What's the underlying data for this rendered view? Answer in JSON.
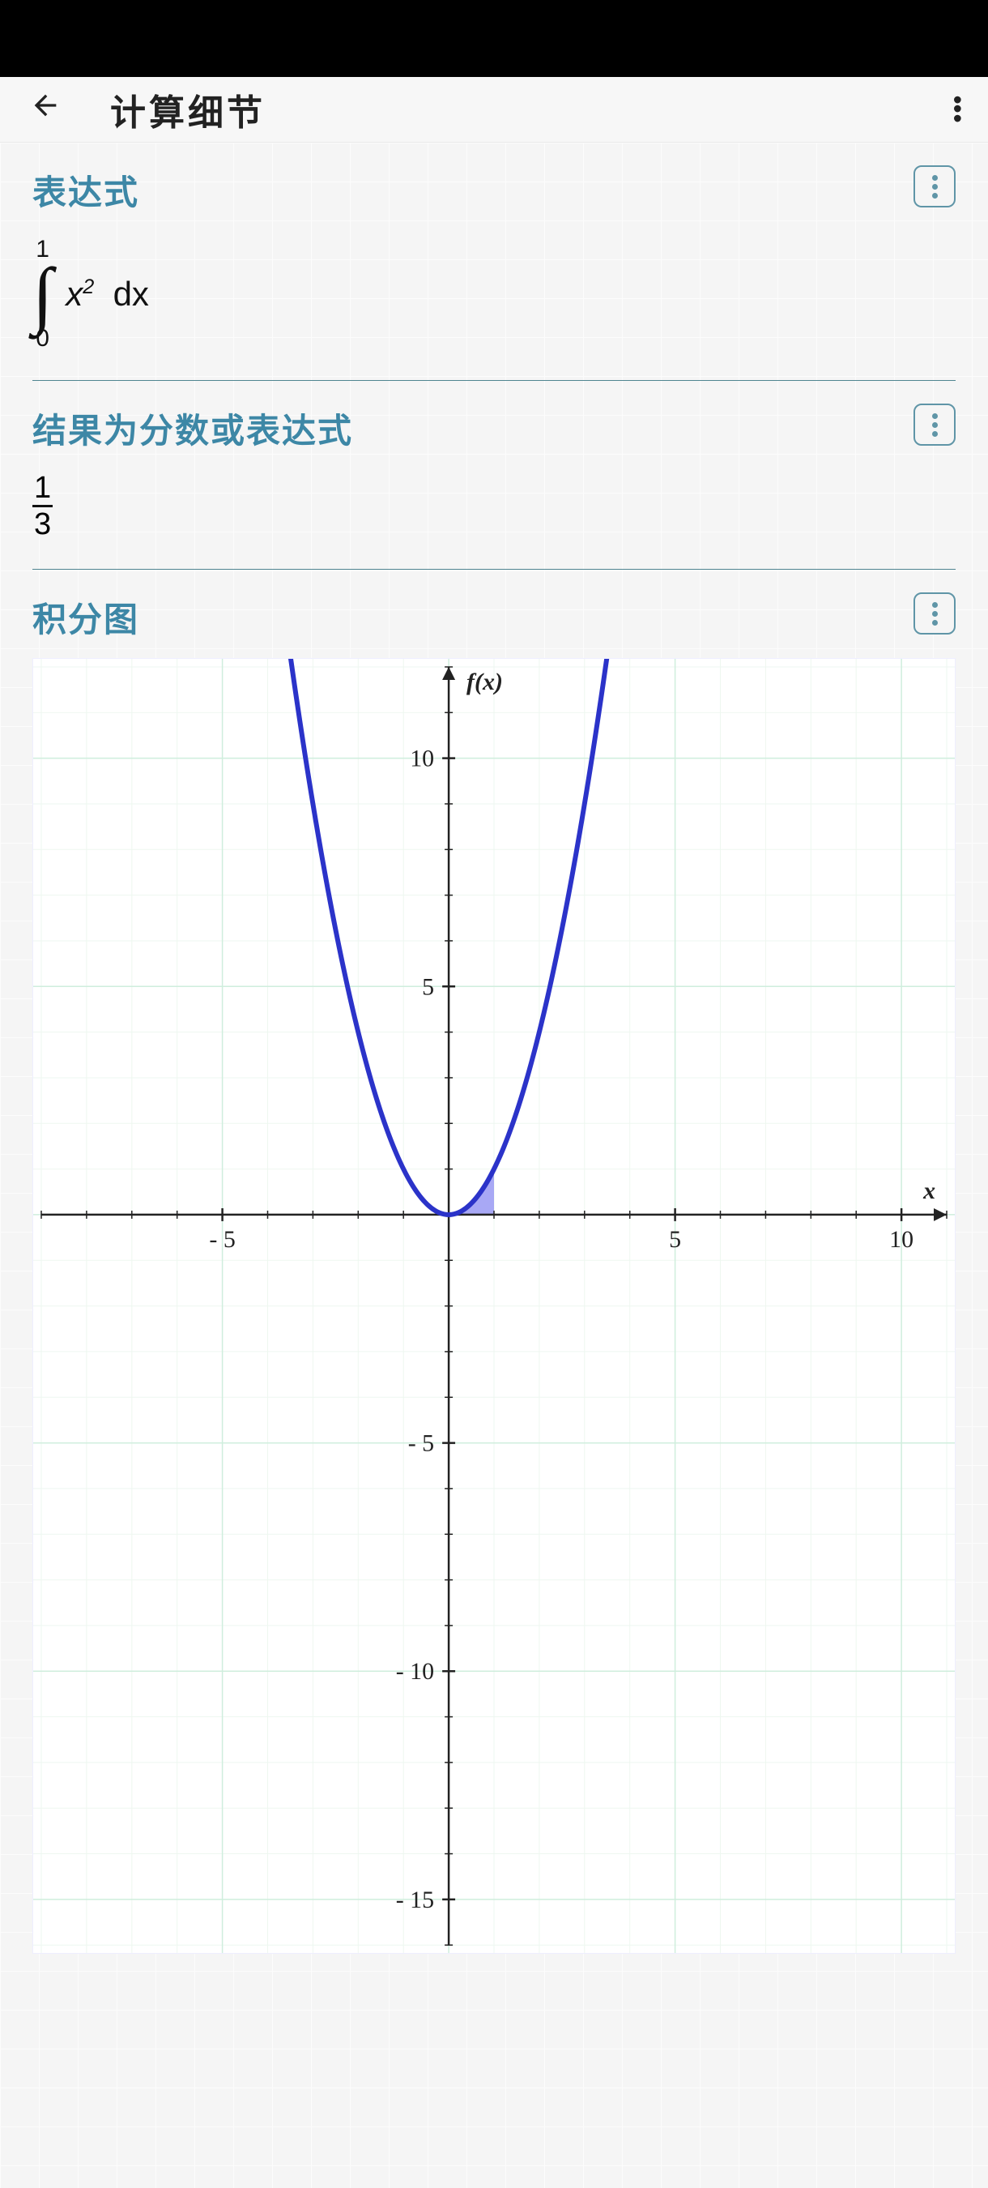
{
  "header": {
    "title": "计算细节"
  },
  "sections": {
    "expression": {
      "title": "表达式",
      "integral": {
        "upper": "1",
        "lower": "0",
        "body_var": "x",
        "body_exp": "2",
        "diff": "dx"
      }
    },
    "result": {
      "title": "结果为分数或表达式",
      "fraction": {
        "num": "1",
        "den": "3"
      }
    },
    "plot": {
      "title": "积分图",
      "x_label": "x",
      "y_label": "f(x)",
      "chart": {
        "type": "function-plot",
        "function": "y = x^2",
        "fill_region": {
          "x_from": 0,
          "x_to": 1
        },
        "xlim": [
          -9,
          11
        ],
        "ylim": [
          -16,
          12
        ],
        "x_ticks": [
          -5,
          5,
          10
        ],
        "x_tick_labels": [
          "- 5",
          "5",
          "10"
        ],
        "y_ticks": [
          -15,
          -10,
          -5,
          5,
          10
        ],
        "y_tick_labels": [
          "- 15",
          "- 10",
          "- 5",
          "5",
          "10"
        ],
        "colors": {
          "curve": "#2b33c9",
          "fill": "#7a7af0",
          "fill_opacity": 0.65,
          "axis": "#222222",
          "major_grid": "#cfeedd",
          "minor_grid": "#eef7f0",
          "background": "#ffffff",
          "tick_text": "#222222",
          "axis_label": "#222222"
        },
        "line_width": 6,
        "tick_font_size": 30,
        "label_font_size": 30,
        "label_font_style": "italic bold"
      }
    }
  }
}
